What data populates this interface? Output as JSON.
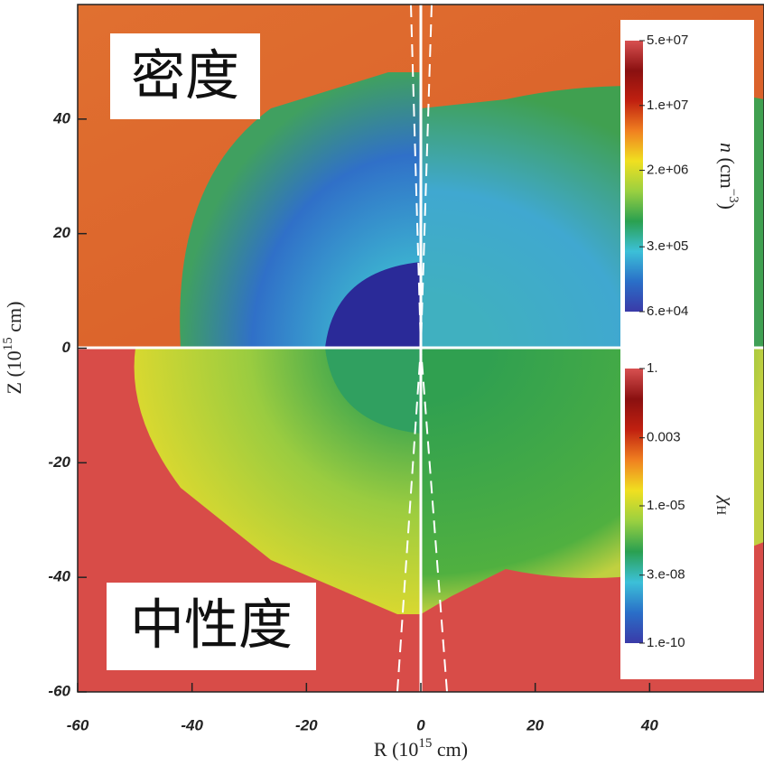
{
  "chart_data": {
    "type": "image",
    "xlabel": [
      "R (10",
      "15",
      " cm)"
    ],
    "ylabel": [
      "Z (10",
      "15",
      " cm)"
    ],
    "xlim": [
      -60,
      60
    ],
    "ylim": [
      -60,
      60
    ],
    "xticks": [
      -60,
      -40,
      -20,
      0,
      20,
      40
    ],
    "yticks": [
      -60,
      -40,
      -20,
      0,
      20,
      40
    ],
    "annotations": [
      "密度",
      "中性度"
    ],
    "colormap": [
      "#3a3aa8",
      "#2a6fc8",
      "#3cc0d8",
      "#2aa050",
      "#9ad040",
      "#f0e020",
      "#f08020",
      "#c02010",
      "#8a1010",
      "#d85050"
    ],
    "colorbars": [
      {
        "label": [
          "n",
          " (cm",
          "−3",
          ")"
        ],
        "log": true,
        "clim": [
          60000,
          50000000
        ],
        "ticks": [
          {
            "value": 50000000,
            "label": "5.e+07"
          },
          {
            "value": 10000000,
            "label": "1.e+07"
          },
          {
            "value": 2000000,
            "label": "2.e+06"
          },
          {
            "value": 300000,
            "label": "3.e+05"
          },
          {
            "value": 60000,
            "label": "6.e+04"
          }
        ]
      },
      {
        "label": [
          "χ",
          "H"
        ],
        "log": true,
        "clim": [
          1e-10,
          1
        ],
        "ticks": [
          {
            "value": 1,
            "label": "1."
          },
          {
            "value": 0.003,
            "label": "0.003"
          },
          {
            "value": 1e-05,
            "label": "1.e-05"
          },
          {
            "value": 3e-08,
            "label": "3.e-08"
          },
          {
            "value": 1e-10,
            "label": "1.e-10"
          }
        ]
      }
    ]
  }
}
